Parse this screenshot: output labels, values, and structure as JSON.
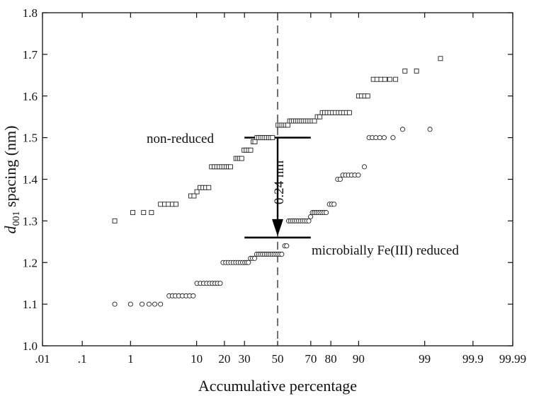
{
  "chart_data": {
    "type": "scatter",
    "title": "",
    "xlabel": "Accumulative percentage",
    "ylabel_main": "d",
    "ylabel_sub": "001",
    "ylabel_rest": " spacing (nm)",
    "x_scale": "probability",
    "xlim": [
      0.01,
      99.99
    ],
    "ylim": [
      1.0,
      1.8
    ],
    "x_ticks": [
      {
        "value": 0.01,
        "label": ".01"
      },
      {
        "value": 0.1,
        "label": ".1"
      },
      {
        "value": 1,
        "label": "1"
      },
      {
        "value": 10,
        "label": "10"
      },
      {
        "value": 20,
        "label": "20"
      },
      {
        "value": 30,
        "label": "30"
      },
      {
        "value": 50,
        "label": "50"
      },
      {
        "value": 70,
        "label": "70"
      },
      {
        "value": 80,
        "label": "80"
      },
      {
        "value": 90,
        "label": "90"
      },
      {
        "value": 99,
        "label": "99"
      },
      {
        "value": 99.9,
        "label": "99.9"
      },
      {
        "value": 99.99,
        "label": "99.99"
      }
    ],
    "y_ticks": [
      {
        "value": 1.0,
        "label": "1.0"
      },
      {
        "value": 1.1,
        "label": "1.1"
      },
      {
        "value": 1.2,
        "label": "1.2"
      },
      {
        "value": 1.3,
        "label": "1.3"
      },
      {
        "value": 1.4,
        "label": "1.4"
      },
      {
        "value": 1.5,
        "label": "1.5"
      },
      {
        "value": 1.6,
        "label": "1.6"
      },
      {
        "value": 1.7,
        "label": "1.7"
      },
      {
        "value": 1.8,
        "label": "1.8"
      }
    ],
    "grid": false,
    "series": [
      {
        "marker": "square",
        "points": [
          [
            0.5,
            1.3
          ],
          [
            1.1,
            1.32
          ],
          [
            1.7,
            1.32
          ],
          [
            2.3,
            1.32
          ],
          [
            3.2,
            1.34
          ],
          [
            3.7,
            1.34
          ],
          [
            4.2,
            1.34
          ],
          [
            4.8,
            1.34
          ],
          [
            5.4,
            1.34
          ],
          [
            8.5,
            1.36
          ],
          [
            9.3,
            1.36
          ],
          [
            10.1,
            1.37
          ],
          [
            11.0,
            1.38
          ],
          [
            11.9,
            1.38
          ],
          [
            12.8,
            1.38
          ],
          [
            13.8,
            1.38
          ],
          [
            14.8,
            1.43
          ],
          [
            15.8,
            1.43
          ],
          [
            16.8,
            1.43
          ],
          [
            17.8,
            1.43
          ],
          [
            18.8,
            1.43
          ],
          [
            19.8,
            1.43
          ],
          [
            20.8,
            1.43
          ],
          [
            21.8,
            1.43
          ],
          [
            22.8,
            1.43
          ],
          [
            25.5,
            1.45
          ],
          [
            26.5,
            1.45
          ],
          [
            27.5,
            1.45
          ],
          [
            28.5,
            1.45
          ],
          [
            29.8,
            1.47
          ],
          [
            31.0,
            1.47
          ],
          [
            32.3,
            1.47
          ],
          [
            33.5,
            1.47
          ],
          [
            35.0,
            1.49
          ],
          [
            36.0,
            1.49
          ],
          [
            37.2,
            1.5
          ],
          [
            38.4,
            1.5
          ],
          [
            39.6,
            1.5
          ],
          [
            40.8,
            1.5
          ],
          [
            42.0,
            1.5
          ],
          [
            43.2,
            1.5
          ],
          [
            44.4,
            1.5
          ],
          [
            45.6,
            1.5
          ],
          [
            46.8,
            1.5
          ],
          [
            50.3,
            1.53
          ],
          [
            51.5,
            1.53
          ],
          [
            52.7,
            1.53
          ],
          [
            54.0,
            1.53
          ],
          [
            55.2,
            1.53
          ],
          [
            56.4,
            1.53
          ],
          [
            57.6,
            1.54
          ],
          [
            58.8,
            1.54
          ],
          [
            60.0,
            1.54
          ],
          [
            61.2,
            1.54
          ],
          [
            62.4,
            1.54
          ],
          [
            63.6,
            1.54
          ],
          [
            64.8,
            1.54
          ],
          [
            66.0,
            1.54
          ],
          [
            67.2,
            1.54
          ],
          [
            68.4,
            1.54
          ],
          [
            69.6,
            1.54
          ],
          [
            70.8,
            1.54
          ],
          [
            72.0,
            1.54
          ],
          [
            73.5,
            1.55
          ],
          [
            74.8,
            1.55
          ],
          [
            76.0,
            1.56
          ],
          [
            77.2,
            1.56
          ],
          [
            78.4,
            1.56
          ],
          [
            79.6,
            1.56
          ],
          [
            80.8,
            1.56
          ],
          [
            82.0,
            1.56
          ],
          [
            83.2,
            1.56
          ],
          [
            84.2,
            1.56
          ],
          [
            85.2,
            1.56
          ],
          [
            86.2,
            1.56
          ],
          [
            87.2,
            1.56
          ],
          [
            90.0,
            1.6
          ],
          [
            90.8,
            1.6
          ],
          [
            91.6,
            1.6
          ],
          [
            92.3,
            1.6
          ],
          [
            93.5,
            1.64
          ],
          [
            94.2,
            1.64
          ],
          [
            94.9,
            1.64
          ],
          [
            95.5,
            1.64
          ],
          [
            96.2,
            1.64
          ],
          [
            96.9,
            1.64
          ],
          [
            97.8,
            1.66
          ],
          [
            98.6,
            1.66
          ],
          [
            99.5,
            1.69
          ]
        ]
      },
      {
        "marker": "circle",
        "points": [
          [
            0.5,
            1.1
          ],
          [
            1.0,
            1.1
          ],
          [
            1.6,
            1.1
          ],
          [
            2.1,
            1.1
          ],
          [
            2.6,
            1.1
          ],
          [
            3.2,
            1.1
          ],
          [
            4.3,
            1.12
          ],
          [
            4.8,
            1.12
          ],
          [
            5.3,
            1.12
          ],
          [
            5.9,
            1.12
          ],
          [
            6.6,
            1.12
          ],
          [
            7.4,
            1.12
          ],
          [
            8.2,
            1.12
          ],
          [
            9.1,
            1.12
          ],
          [
            10.1,
            1.15
          ],
          [
            11.1,
            1.15
          ],
          [
            12.1,
            1.15
          ],
          [
            13.1,
            1.15
          ],
          [
            14.1,
            1.15
          ],
          [
            15.1,
            1.15
          ],
          [
            16.1,
            1.15
          ],
          [
            17.1,
            1.15
          ],
          [
            18.2,
            1.15
          ],
          [
            19.4,
            1.2
          ],
          [
            20.6,
            1.2
          ],
          [
            21.8,
            1.2
          ],
          [
            23.0,
            1.2
          ],
          [
            24.2,
            1.2
          ],
          [
            25.4,
            1.2
          ],
          [
            26.6,
            1.2
          ],
          [
            27.8,
            1.2
          ],
          [
            29.0,
            1.2
          ],
          [
            30.2,
            1.2
          ],
          [
            31.2,
            1.2
          ],
          [
            32.2,
            1.2
          ],
          [
            33.4,
            1.21
          ],
          [
            34.6,
            1.21
          ],
          [
            35.8,
            1.21
          ],
          [
            37.0,
            1.22
          ],
          [
            38.2,
            1.22
          ],
          [
            39.4,
            1.22
          ],
          [
            40.6,
            1.22
          ],
          [
            41.8,
            1.22
          ],
          [
            43.0,
            1.22
          ],
          [
            44.2,
            1.22
          ],
          [
            45.4,
            1.22
          ],
          [
            46.6,
            1.22
          ],
          [
            47.8,
            1.22
          ],
          [
            49.0,
            1.22
          ],
          [
            50.2,
            1.22
          ],
          [
            51.4,
            1.22
          ],
          [
            52.6,
            1.22
          ],
          [
            54.5,
            1.24
          ],
          [
            55.7,
            1.24
          ],
          [
            56.9,
            1.3
          ],
          [
            58.1,
            1.3
          ],
          [
            59.3,
            1.3
          ],
          [
            60.5,
            1.3
          ],
          [
            61.7,
            1.3
          ],
          [
            62.9,
            1.3
          ],
          [
            64.1,
            1.3
          ],
          [
            65.3,
            1.3
          ],
          [
            66.5,
            1.3
          ],
          [
            67.7,
            1.3
          ],
          [
            68.9,
            1.3
          ],
          [
            69.9,
            1.31
          ],
          [
            70.9,
            1.32
          ],
          [
            71.9,
            1.32
          ],
          [
            72.9,
            1.32
          ],
          [
            73.9,
            1.32
          ],
          [
            74.9,
            1.32
          ],
          [
            75.9,
            1.32
          ],
          [
            76.9,
            1.32
          ],
          [
            77.9,
            1.32
          ],
          [
            79.4,
            1.34
          ],
          [
            80.4,
            1.34
          ],
          [
            81.4,
            1.34
          ],
          [
            82.9,
            1.4
          ],
          [
            83.9,
            1.4
          ],
          [
            84.9,
            1.41
          ],
          [
            85.9,
            1.41
          ],
          [
            86.9,
            1.41
          ],
          [
            87.9,
            1.41
          ],
          [
            88.9,
            1.41
          ],
          [
            89.9,
            1.41
          ],
          [
            91.5,
            1.43
          ],
          [
            92.6,
            1.5
          ],
          [
            93.3,
            1.5
          ],
          [
            94.0,
            1.5
          ],
          [
            94.7,
            1.5
          ],
          [
            95.4,
            1.5
          ],
          [
            96.6,
            1.5
          ],
          [
            97.6,
            1.52
          ],
          [
            99.2,
            1.52
          ]
        ]
      }
    ],
    "reference_lines": [
      {
        "kind": "vertical-dashed",
        "x": 50
      },
      {
        "kind": "level",
        "y": 1.5,
        "x_from": 30,
        "x_to": 70
      },
      {
        "kind": "level",
        "y": 1.26,
        "x_from": 30,
        "x_to": 70
      }
    ],
    "annotations": [
      {
        "id": "non_reduced",
        "text": "non-reduced"
      },
      {
        "id": "reduced",
        "text": "microbially Fe(III) reduced"
      },
      {
        "id": "shift",
        "text": "0.24 nm"
      }
    ],
    "arrow": {
      "x": 50,
      "y_from": 1.5,
      "y_to": 1.26
    }
  }
}
